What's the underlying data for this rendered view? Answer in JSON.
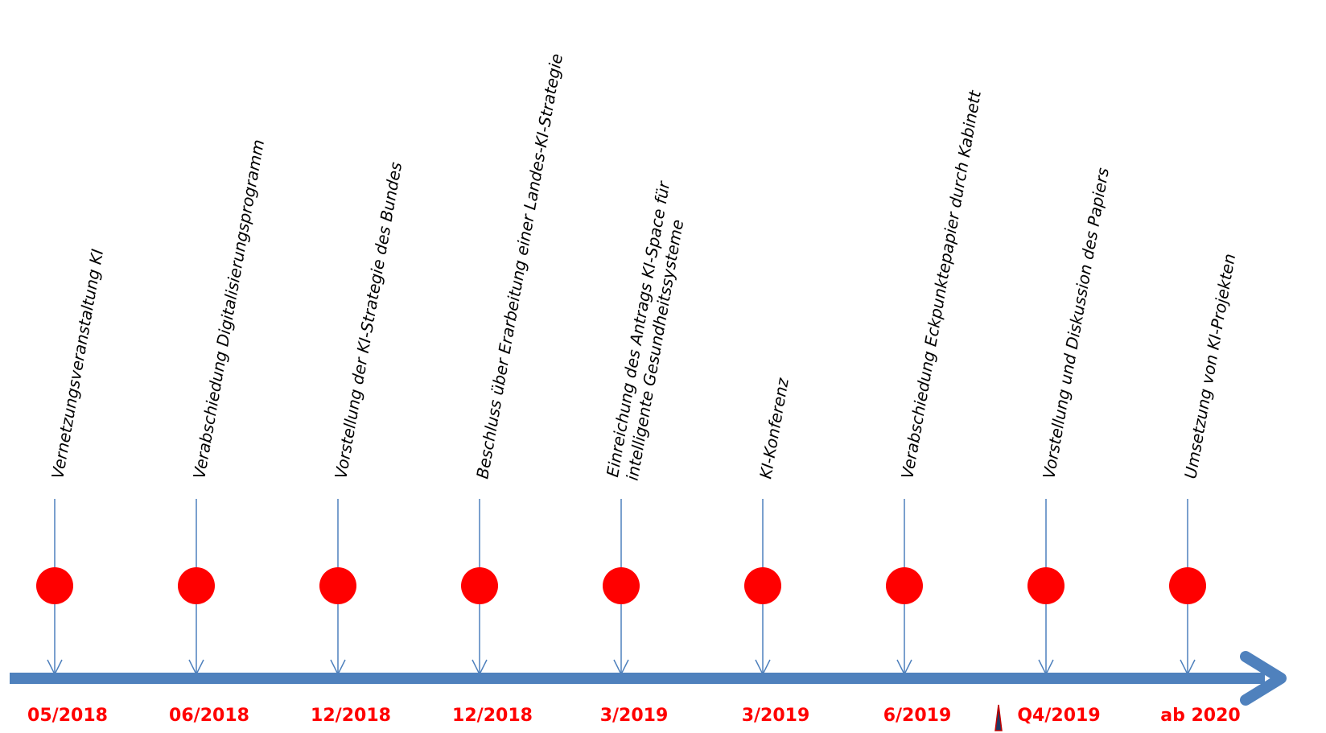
{
  "colors": {
    "axis": "#4f81bd",
    "connector": "#4f81bd",
    "marker": "#ff0000",
    "date_text": "#ff0000",
    "event_text": "#000000",
    "cursor": "#1f3864"
  },
  "events": [
    {
      "lines": [
        "Vernetzungsveranstaltung KI"
      ],
      "date": "05/2018"
    },
    {
      "lines": [
        "Verabschiedung Digitalisierungsprogramm"
      ],
      "date": "06/2018"
    },
    {
      "lines": [
        "Vorstellung der KI-Strategie des Bundes"
      ],
      "date": "12/2018"
    },
    {
      "lines": [
        "Beschluss über Erarbeitung einer Landes-KI-Strategie"
      ],
      "date": "12/2018"
    },
    {
      "lines": [
        "Einreichung des Antrags KI-Space für",
        "intelligente Gesundheitssysteme"
      ],
      "date": "3/2019"
    },
    {
      "lines": [
        "KI-Konferenz"
      ],
      "date": "3/2019"
    },
    {
      "lines": [
        "Verabschiedung Eckpunktepapier durch Kabinett"
      ],
      "date": "6/2019"
    },
    {
      "lines": [
        "Vorstellung und Diskussion des Papiers"
      ],
      "date": "Q4/2019"
    },
    {
      "lines": [
        "Umsetzung von KI-Projekten"
      ],
      "date": "ab 2020"
    }
  ]
}
